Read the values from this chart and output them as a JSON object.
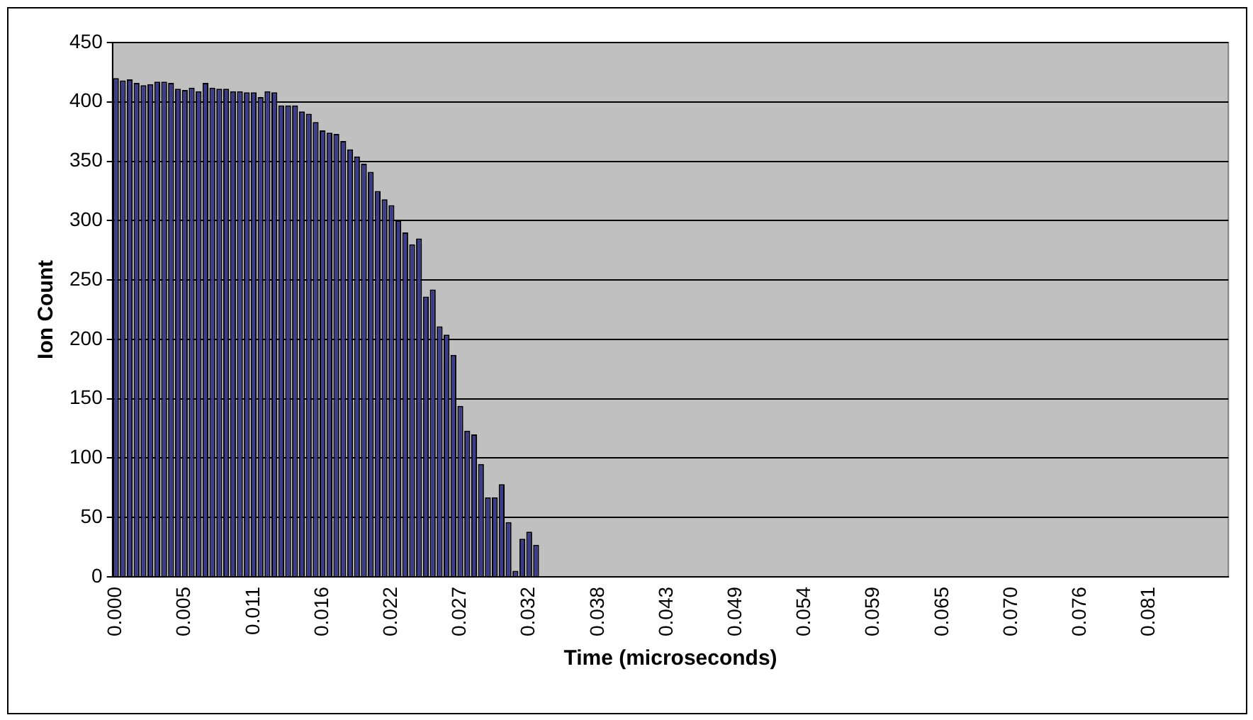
{
  "chart_data": {
    "type": "bar",
    "xlabel": "Time (microseconds)",
    "ylabel": "Ion Count",
    "categories": [
      "0.000",
      null,
      null,
      null,
      null,
      null,
      null,
      null,
      null,
      null,
      "0.005",
      null,
      null,
      null,
      null,
      null,
      null,
      null,
      null,
      null,
      "0.011",
      null,
      null,
      null,
      null,
      null,
      null,
      null,
      null,
      null,
      "0.016",
      null,
      null,
      null,
      null,
      null,
      null,
      null,
      null,
      null,
      "0.022",
      null,
      null,
      null,
      null,
      null,
      null,
      null,
      null,
      null,
      "0.027",
      null,
      null,
      null,
      null,
      null,
      null,
      null,
      null,
      null,
      "0.032",
      null,
      null,
      null,
      null,
      null,
      null,
      null,
      null,
      null,
      "0.038",
      null,
      null,
      null,
      null,
      null,
      null,
      null,
      null,
      null,
      "0.043",
      null,
      null,
      null,
      null,
      null,
      null,
      null,
      null,
      null,
      "0.049",
      null,
      null,
      null,
      null,
      null,
      null,
      null,
      null,
      null,
      "0.054",
      null,
      null,
      null,
      null,
      null,
      null,
      null,
      null,
      null,
      "0.059",
      null,
      null,
      null,
      null,
      null,
      null,
      null,
      null,
      null,
      "0.065",
      null,
      null,
      null,
      null,
      null,
      null,
      null,
      null,
      null,
      "0.070",
      null,
      null,
      null,
      null,
      null,
      null,
      null,
      null,
      null,
      "0.076",
      null,
      null,
      null,
      null,
      null,
      null,
      null,
      null,
      null,
      "0.081",
      null,
      null,
      null,
      null,
      null,
      null,
      null,
      null,
      null,
      null,
      null
    ],
    "values": [
      420,
      418,
      419,
      416,
      414,
      415,
      417,
      417,
      416,
      411,
      410,
      412,
      409,
      416,
      412,
      411,
      411,
      409,
      409,
      408,
      408,
      404,
      409,
      408,
      397,
      397,
      397,
      392,
      390,
      383,
      376,
      374,
      373,
      367,
      360,
      354,
      348,
      341,
      325,
      318,
      313,
      300,
      290,
      280,
      285,
      236,
      242,
      211,
      204,
      187,
      144,
      123,
      120,
      95,
      67,
      67,
      78,
      46,
      5,
      32,
      38,
      27,
      0,
      0,
      0,
      0,
      0,
      0,
      0,
      0,
      0,
      0,
      0,
      0,
      0,
      0,
      0,
      0,
      0,
      0,
      0,
      0,
      0,
      0,
      0,
      0,
      0,
      0,
      0,
      0,
      0,
      0,
      0,
      0,
      0,
      0,
      0,
      0,
      0,
      0,
      0,
      0,
      0,
      0,
      0,
      0,
      0,
      0,
      0,
      0,
      0,
      0,
      0,
      0,
      0,
      0,
      0,
      0,
      0,
      0,
      0,
      0,
      0,
      0,
      0,
      0,
      0,
      0,
      0,
      0,
      0,
      0,
      0,
      0,
      0,
      0,
      0,
      0,
      0,
      0,
      0,
      0,
      0,
      0,
      0,
      0,
      0,
      0,
      0,
      0,
      0,
      0,
      0,
      0,
      0,
      0,
      0,
      0,
      0,
      0,
      0,
      0
    ],
    "color": "#3a3a8e",
    "ylim": [
      0,
      450
    ],
    "yticks": [
      0,
      50,
      100,
      150,
      200,
      250,
      300,
      350,
      400,
      450
    ],
    "grid": "y"
  }
}
